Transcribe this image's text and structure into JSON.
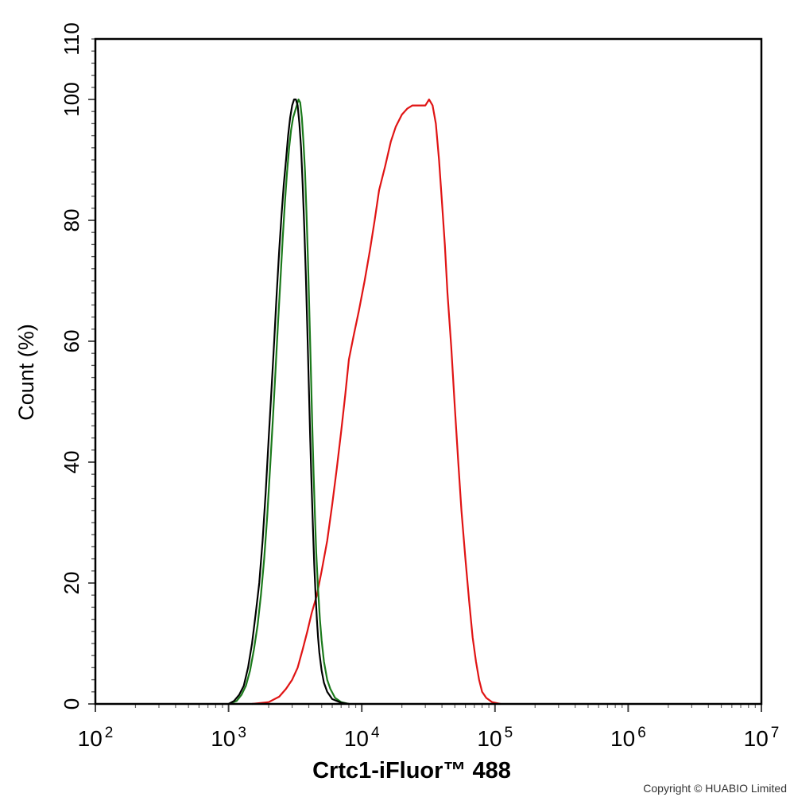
{
  "chart_data": {
    "type": "line",
    "title": "",
    "xlabel": "Crtc1-iFluor™ 488",
    "ylabel": "Count  (%)",
    "x_scale": "log",
    "xlim": [
      100,
      10000000
    ],
    "ylim": [
      0,
      110
    ],
    "x_ticks": [
      {
        "base": "10",
        "exp": "2"
      },
      {
        "base": "10",
        "exp": "3"
      },
      {
        "base": "10",
        "exp": "4"
      },
      {
        "base": "10",
        "exp": "5"
      },
      {
        "base": "10",
        "exp": "6"
      },
      {
        "base": "10",
        "exp": "7"
      }
    ],
    "y_ticks": [
      "0",
      "20",
      "40",
      "60",
      "80",
      "100",
      "110"
    ],
    "grid": false,
    "legend": "none",
    "series": [
      {
        "color": "#000000",
        "points": [
          [
            1000,
            0
          ],
          [
            1100,
            0.5
          ],
          [
            1200,
            1.5
          ],
          [
            1300,
            3
          ],
          [
            1400,
            6
          ],
          [
            1500,
            10
          ],
          [
            1600,
            15
          ],
          [
            1700,
            20
          ],
          [
            1800,
            27
          ],
          [
            1900,
            35
          ],
          [
            2000,
            44
          ],
          [
            2100,
            52
          ],
          [
            2200,
            60
          ],
          [
            2300,
            68
          ],
          [
            2400,
            75
          ],
          [
            2500,
            81
          ],
          [
            2600,
            86
          ],
          [
            2700,
            90
          ],
          [
            2800,
            94
          ],
          [
            2900,
            97
          ],
          [
            3000,
            99
          ],
          [
            3100,
            100
          ],
          [
            3200,
            100
          ],
          [
            3300,
            99
          ],
          [
            3400,
            96
          ],
          [
            3500,
            92
          ],
          [
            3600,
            86
          ],
          [
            3700,
            79
          ],
          [
            3800,
            71
          ],
          [
            3900,
            62
          ],
          [
            4000,
            53
          ],
          [
            4100,
            44
          ],
          [
            4200,
            36
          ],
          [
            4300,
            29
          ],
          [
            4400,
            23
          ],
          [
            4500,
            18
          ],
          [
            4600,
            14
          ],
          [
            4700,
            11
          ],
          [
            4800,
            8.5
          ],
          [
            5000,
            5.5
          ],
          [
            5200,
            3.5
          ],
          [
            5500,
            2
          ],
          [
            6000,
            0.8
          ],
          [
            7000,
            0.2
          ],
          [
            8000,
            0
          ]
        ]
      },
      {
        "color": "#1b7a1b",
        "points": [
          [
            1000,
            0
          ],
          [
            1150,
            0.5
          ],
          [
            1250,
            1.5
          ],
          [
            1350,
            3
          ],
          [
            1450,
            5.5
          ],
          [
            1550,
            9
          ],
          [
            1650,
            13
          ],
          [
            1750,
            18
          ],
          [
            1850,
            24
          ],
          [
            1950,
            31
          ],
          [
            2050,
            39
          ],
          [
            2150,
            47
          ],
          [
            2250,
            55
          ],
          [
            2350,
            63
          ],
          [
            2450,
            70
          ],
          [
            2550,
            77
          ],
          [
            2650,
            83
          ],
          [
            2750,
            88
          ],
          [
            2850,
            92
          ],
          [
            2950,
            95
          ],
          [
            3050,
            97
          ],
          [
            3150,
            98
          ],
          [
            3250,
            99
          ],
          [
            3350,
            100
          ],
          [
            3450,
            99.5
          ],
          [
            3550,
            97
          ],
          [
            3650,
            93
          ],
          [
            3750,
            88
          ],
          [
            3850,
            81
          ],
          [
            3950,
            73
          ],
          [
            4050,
            64
          ],
          [
            4150,
            55
          ],
          [
            4250,
            46
          ],
          [
            4350,
            38
          ],
          [
            4450,
            31
          ],
          [
            4550,
            25
          ],
          [
            4700,
            19
          ],
          [
            4850,
            14
          ],
          [
            5000,
            10.5
          ],
          [
            5200,
            7
          ],
          [
            5500,
            4
          ],
          [
            5800,
            2.5
          ],
          [
            6300,
            1
          ],
          [
            7000,
            0.3
          ],
          [
            8000,
            0
          ]
        ]
      },
      {
        "color": "#e01414",
        "points": [
          [
            1500,
            0
          ],
          [
            2000,
            0.3
          ],
          [
            2400,
            1.2
          ],
          [
            2700,
            2.5
          ],
          [
            3000,
            4
          ],
          [
            3300,
            6
          ],
          [
            3600,
            9
          ],
          [
            3900,
            12
          ],
          [
            4200,
            15
          ],
          [
            4600,
            18
          ],
          [
            5000,
            22
          ],
          [
            5500,
            27
          ],
          [
            6000,
            33
          ],
          [
            6500,
            39
          ],
          [
            7000,
            45
          ],
          [
            7500,
            51
          ],
          [
            8000,
            57
          ],
          [
            8700,
            61
          ],
          [
            9500,
            65
          ],
          [
            10500,
            70
          ],
          [
            11500,
            75
          ],
          [
            12500,
            80
          ],
          [
            13500,
            85
          ],
          [
            15000,
            89
          ],
          [
            16500,
            93
          ],
          [
            18000,
            95.5
          ],
          [
            20000,
            97.5
          ],
          [
            22000,
            98.5
          ],
          [
            24000,
            99
          ],
          [
            26000,
            99
          ],
          [
            28000,
            99
          ],
          [
            30000,
            99
          ],
          [
            32000,
            100
          ],
          [
            34000,
            99
          ],
          [
            36000,
            96
          ],
          [
            38000,
            90
          ],
          [
            40000,
            83
          ],
          [
            42000,
            76
          ],
          [
            44000,
            68
          ],
          [
            47000,
            59
          ],
          [
            50000,
            49
          ],
          [
            53000,
            40
          ],
          [
            56000,
            32
          ],
          [
            60000,
            24
          ],
          [
            64000,
            17
          ],
          [
            68000,
            11
          ],
          [
            72000,
            7
          ],
          [
            76000,
            4
          ],
          [
            80000,
            2
          ],
          [
            86000,
            1
          ],
          [
            95000,
            0.3
          ],
          [
            110000,
            0
          ]
        ]
      }
    ]
  },
  "copyright": "Copyright © HUABIO Limited"
}
